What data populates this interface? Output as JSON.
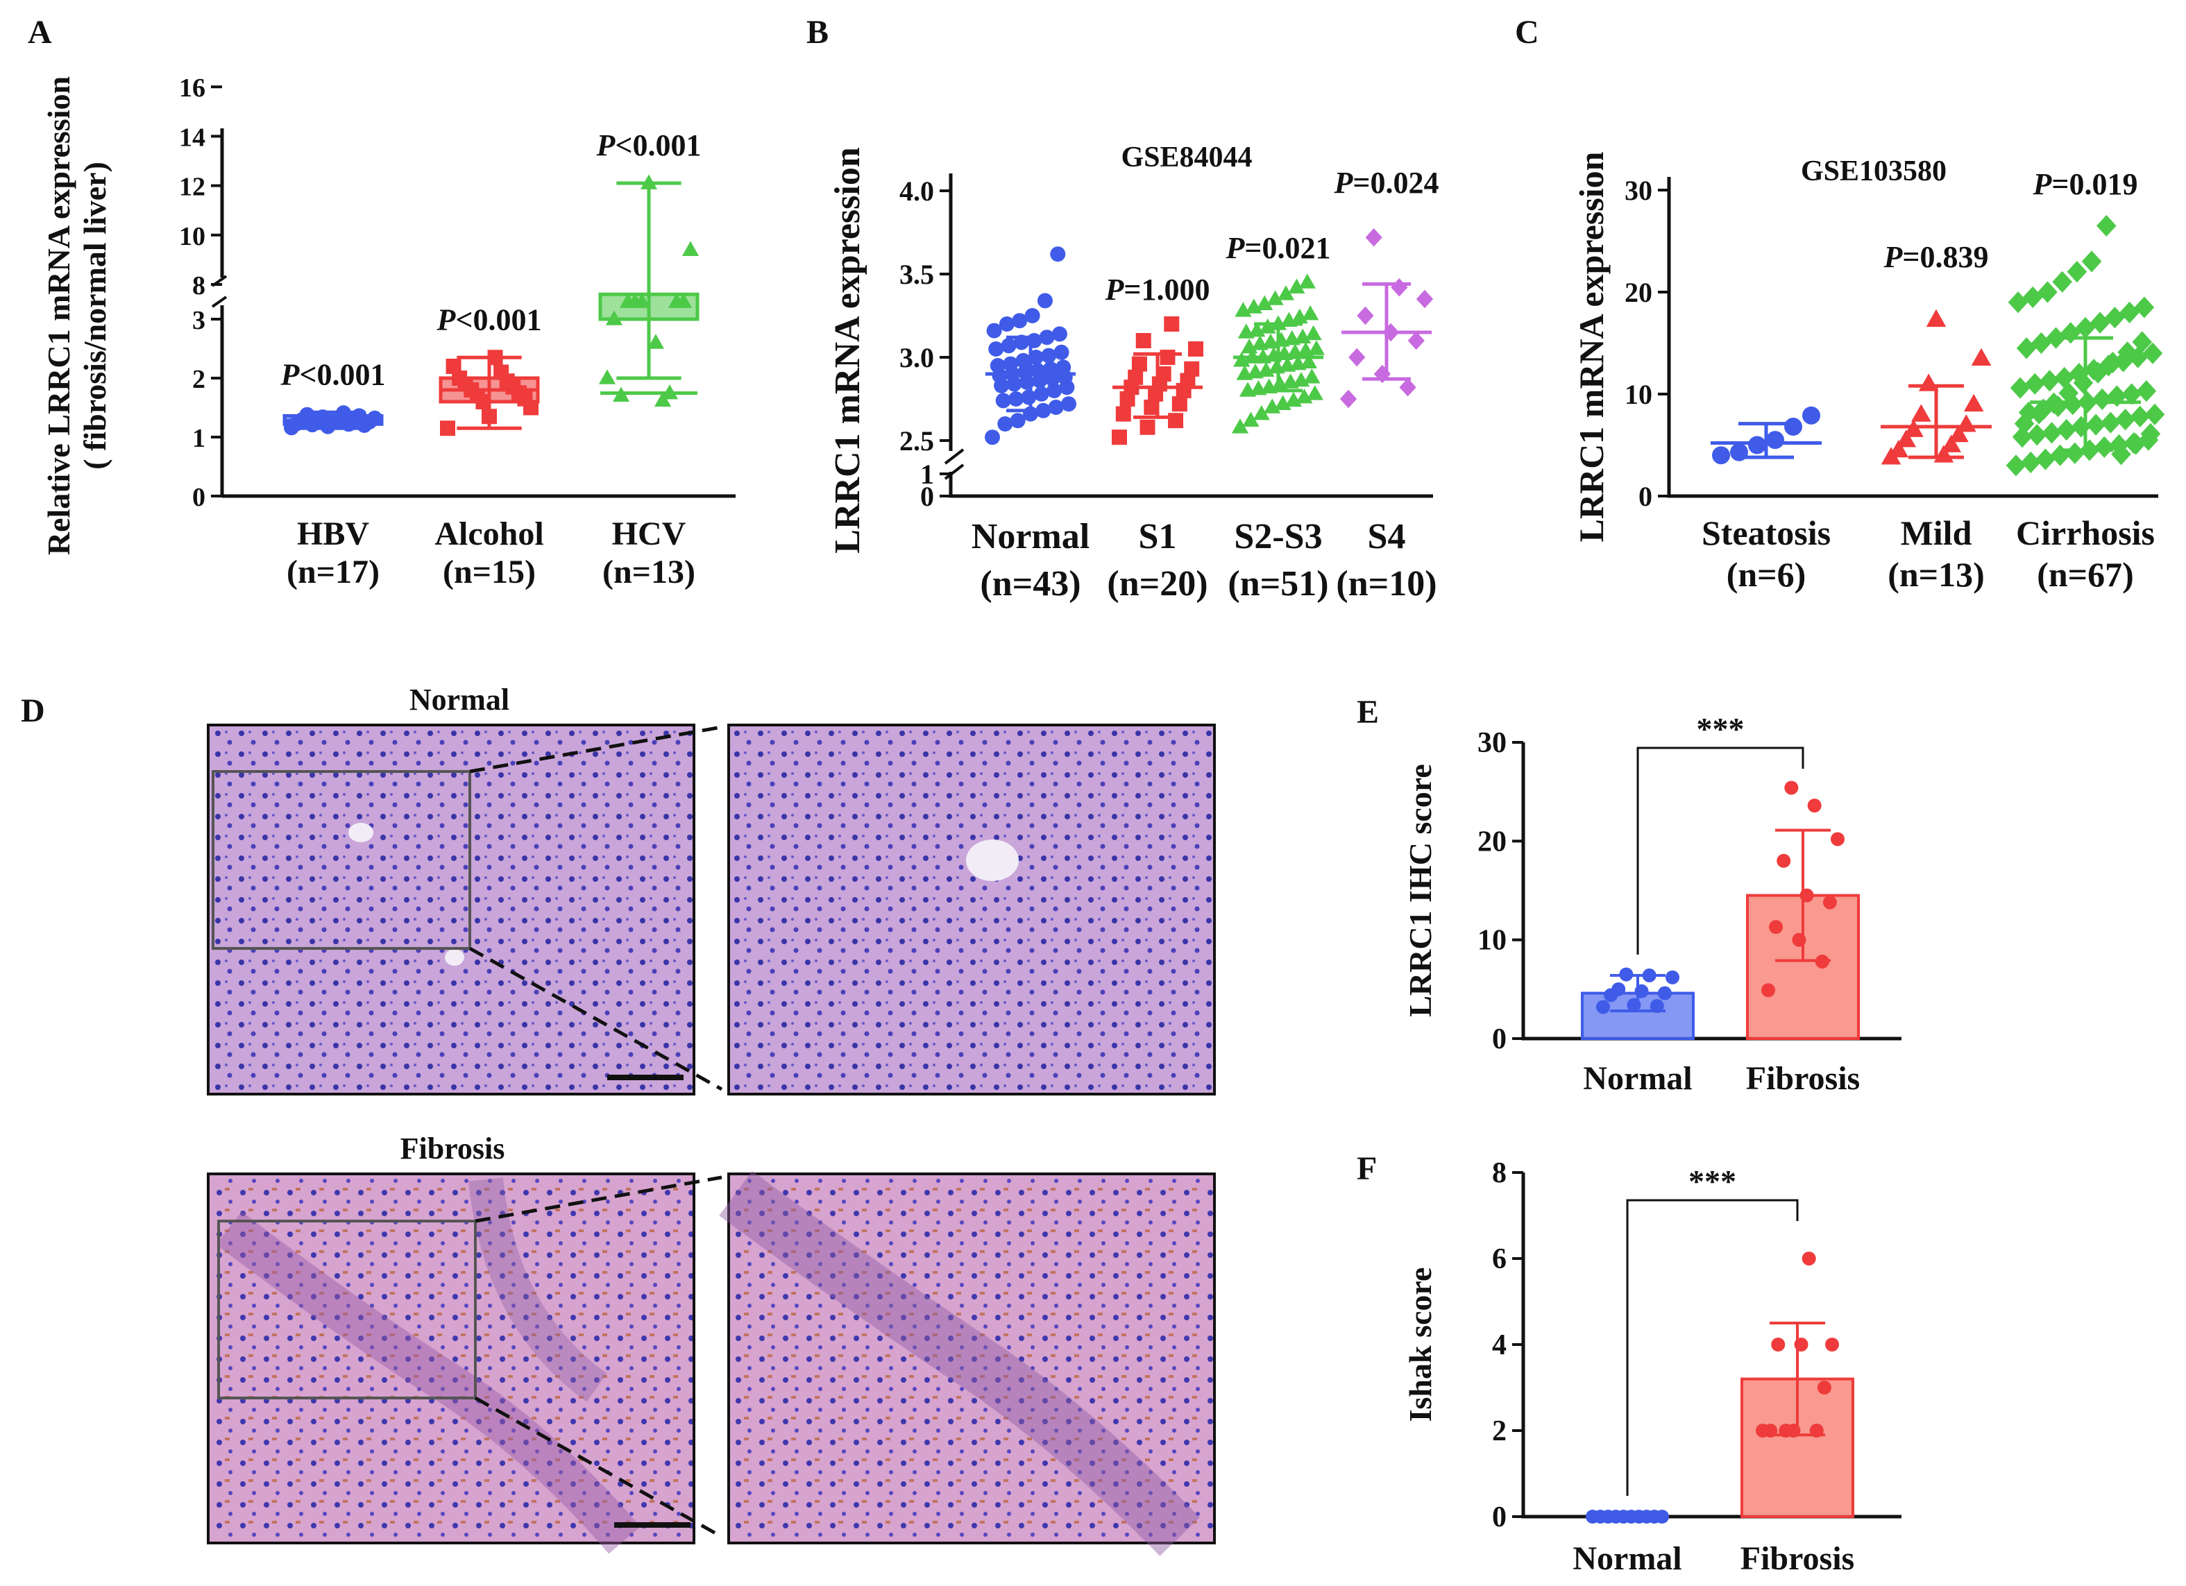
{
  "colors": {
    "blue": "#3f5be8",
    "red": "#ef3b3b",
    "green": "#4dc948",
    "purple": "#c86ae0",
    "e_blue_bar": "#6f86f2",
    "e_red_bar": "#f8877b",
    "axis": "#111111"
  },
  "tissue_images": {
    "icon_normal": "normal-liver-ihc-image",
    "icon_fibrosis": "fibrotic-liver-ihc-image"
  },
  "chart_data": [
    {
      "id": "A",
      "panel_label": "A",
      "type": "box-scatter",
      "title": "",
      "ylabel": "Relative LRRC1 mRNA expression",
      "ylabel2": "( fibrosis/normal liver)",
      "ylim": [
        0,
        16
      ],
      "y_break": [
        3,
        8
      ],
      "yticks": [
        "0",
        "1",
        "2",
        "3",
        "8",
        "10",
        "12",
        "14",
        "16"
      ],
      "categories": [
        {
          "name": "HBV",
          "n": "(n=17)",
          "p_italic": "P",
          "p_rest": "<0.001",
          "color": "blue",
          "marker": "circle",
          "box": {
            "min": 1.15,
            "q1": 1.22,
            "median": 1.28,
            "q3": 1.36,
            "max": 1.42
          },
          "points": [
            1.16,
            1.18,
            1.2,
            1.21,
            1.22,
            1.23,
            1.25,
            1.26,
            1.27,
            1.28,
            1.29,
            1.3,
            1.32,
            1.34,
            1.36,
            1.38,
            1.41
          ]
        },
        {
          "name": "Alcohol",
          "n": "(n=15)",
          "p_italic": "P",
          "p_rest": "<0.001",
          "color": "red",
          "marker": "square",
          "box": {
            "min": 1.15,
            "q1": 1.6,
            "median": 1.8,
            "q3": 2.0,
            "max": 2.35
          },
          "points": [
            1.15,
            1.35,
            1.5,
            1.6,
            1.65,
            1.7,
            1.75,
            1.8,
            1.85,
            1.9,
            1.95,
            2.0,
            2.1,
            2.2,
            2.35
          ]
        },
        {
          "name": "HCV",
          "n": "(n=13)",
          "p_italic": "P",
          "p_rest": "<0.001",
          "color": "green",
          "marker": "triangle",
          "box": {
            "min": 2.0,
            "q1": 3.0,
            "median": 3.6,
            "q3": 7.6,
            "max": 12.1
          },
          "points": [
            2.0,
            2.6,
            3.0,
            3.3,
            3.5,
            3.6,
            7.3,
            7.3,
            7.3,
            7.3,
            7.3,
            9.4,
            12.1
          ]
        }
      ]
    },
    {
      "id": "B",
      "panel_label": "B",
      "type": "scatter",
      "title": "GSE84044",
      "ylabel": "LRRC1 mRNA expression",
      "ylim": [
        0,
        4.0
      ],
      "y_break": [
        1,
        2.5
      ],
      "yticks": [
        "0",
        "1",
        "2.5",
        "3.0",
        "3.5",
        "4.0"
      ],
      "categories": [
        {
          "name": "Normal",
          "n": "(n=43)",
          "p_italic": "",
          "p_rest": "",
          "color": "blue",
          "marker": "circle",
          "mean": 2.9,
          "sd_low": 2.68,
          "sd_high": 3.12,
          "points": [
            2.52,
            2.6,
            2.62,
            2.66,
            2.68,
            2.7,
            2.72,
            2.74,
            2.75,
            2.76,
            2.78,
            2.8,
            2.82,
            2.83,
            2.84,
            2.85,
            2.86,
            2.87,
            2.88,
            2.89,
            2.9,
            2.91,
            2.92,
            2.93,
            2.94,
            2.95,
            2.96,
            2.98,
            3.0,
            3.01,
            3.03,
            3.05,
            3.07,
            3.09,
            3.1,
            3.12,
            3.14,
            3.16,
            3.2,
            3.22,
            3.25,
            3.34,
            3.62
          ]
        },
        {
          "name": "S1",
          "n": "(n=20)",
          "p_italic": "P",
          "p_rest": "=1.000",
          "color": "red",
          "marker": "square",
          "mean": 2.82,
          "sd_low": 2.64,
          "sd_high": 3.02,
          "points": [
            2.52,
            2.58,
            2.62,
            2.66,
            2.7,
            2.72,
            2.75,
            2.78,
            2.8,
            2.82,
            2.84,
            2.86,
            2.88,
            2.9,
            2.93,
            2.96,
            3.0,
            3.05,
            3.1,
            3.2
          ]
        },
        {
          "name": "S2-S3",
          "n": "(n=51)",
          "p_italic": "P",
          "p_rest": "=0.021",
          "color": "green",
          "marker": "triangle",
          "mean": 3.0,
          "sd_low": 2.8,
          "sd_high": 3.2,
          "points": [
            2.58,
            2.62,
            2.66,
            2.7,
            2.72,
            2.74,
            2.76,
            2.78,
            2.8,
            2.81,
            2.82,
            2.84,
            2.85,
            2.86,
            2.88,
            2.9,
            2.91,
            2.92,
            2.94,
            2.95,
            2.96,
            2.97,
            2.98,
            3.0,
            3.0,
            3.01,
            3.02,
            3.03,
            3.04,
            3.05,
            3.06,
            3.08,
            3.09,
            3.1,
            3.11,
            3.12,
            3.14,
            3.15,
            3.16,
            3.18,
            3.2,
            3.22,
            3.24,
            3.26,
            3.28,
            3.3,
            3.32,
            3.35,
            3.38,
            3.42,
            3.45
          ]
        },
        {
          "name": "S4",
          "n": "(n=10)",
          "p_italic": "P",
          "p_rest": "=0.024",
          "color": "purple",
          "marker": "diamond",
          "mean": 3.15,
          "sd_low": 2.87,
          "sd_high": 3.44,
          "points": [
            2.75,
            2.82,
            2.9,
            3.0,
            3.1,
            3.15,
            3.25,
            3.35,
            3.42,
            3.72
          ]
        }
      ]
    },
    {
      "id": "C",
      "panel_label": "C",
      "type": "scatter",
      "title": "GSE103580",
      "ylabel": "LRRC1 mRNA expression",
      "ylim": [
        0,
        30
      ],
      "yticks": [
        "0",
        "10",
        "20",
        "30"
      ],
      "categories": [
        {
          "name": "Steatosis",
          "n": "(n=6)",
          "p_italic": "",
          "p_rest": "",
          "color": "blue",
          "marker": "circle",
          "mean": 5.2,
          "sd_low": 3.8,
          "sd_high": 7.1,
          "points": [
            4.0,
            4.3,
            5.0,
            5.5,
            6.8,
            7.9
          ]
        },
        {
          "name": "Mild",
          "n": "(n=13)",
          "p_italic": "P",
          "p_rest": "=0.839",
          "color": "red",
          "marker": "triangle",
          "mean": 6.8,
          "sd_low": 3.8,
          "sd_high": 10.8,
          "points": [
            3.8,
            4.0,
            4.5,
            5.0,
            5.5,
            6.0,
            6.5,
            7.0,
            8.0,
            9.0,
            11.0,
            13.5,
            17.3
          ]
        },
        {
          "name": "Cirrhosis",
          "n": "(n=67)",
          "p_italic": "P",
          "p_rest": "=0.019",
          "color": "green",
          "marker": "diamond",
          "mean": 9.2,
          "sd_low": 4.5,
          "sd_high": 15.5,
          "points": [
            3.0,
            3.3,
            3.6,
            4.0,
            4.2,
            4.5,
            4.8,
            5.0,
            5.2,
            5.5,
            5.8,
            6.0,
            6.2,
            6.5,
            6.8,
            7.0,
            7.2,
            7.5,
            7.8,
            8.0,
            8.2,
            8.5,
            8.8,
            9.0,
            9.2,
            9.5,
            9.8,
            10.0,
            10.3,
            10.6,
            11.0,
            11.3,
            11.6,
            12.0,
            12.4,
            12.8,
            13.2,
            13.6,
            14.0,
            14.5,
            15.0,
            15.5,
            16.0,
            16.5,
            17.0,
            17.5,
            18.0,
            18.5,
            19.0,
            19.5,
            20.0,
            21.0,
            22.0,
            23.0,
            26.5,
            4.1,
            5.1,
            6.1,
            7.1,
            8.1,
            9.1,
            10.1,
            11.1,
            12.1,
            13.1,
            14.1,
            15.1
          ]
        }
      ]
    },
    {
      "id": "E",
      "panel_label": "E",
      "type": "bar",
      "ylabel": "LRRC1 IHC score",
      "ylim": [
        0,
        30
      ],
      "yticks": [
        "0",
        "10",
        "20",
        "30"
      ],
      "significance": "***",
      "categories": [
        {
          "name": "Normal",
          "value": 4.6,
          "sd": 1.8,
          "bar_color": "e_blue_bar",
          "color": "blue",
          "points": [
            3.2,
            3.3,
            3.4,
            4.4,
            4.6,
            4.8,
            5.0,
            6.2,
            6.4,
            6.5
          ]
        },
        {
          "name": "Fibrosis",
          "value": 14.5,
          "sd": 6.6,
          "bar_color": "e_red_bar",
          "color": "red",
          "points": [
            4.9,
            7.8,
            10.0,
            11.3,
            13.8,
            14.5,
            18.0,
            20.2,
            23.6,
            25.4
          ]
        }
      ]
    },
    {
      "id": "F",
      "panel_label": "F",
      "type": "bar",
      "ylabel": "Ishak score",
      "ylim": [
        0,
        8
      ],
      "yticks": [
        "0",
        "2",
        "4",
        "6",
        "8"
      ],
      "significance": "***",
      "categories": [
        {
          "name": "Normal",
          "value": 0,
          "sd": 0,
          "bar_color": "e_blue_bar",
          "color": "blue",
          "points": [
            0,
            0,
            0,
            0,
            0,
            0,
            0,
            0,
            0,
            0
          ]
        },
        {
          "name": "Fibrosis",
          "value": 3.2,
          "sd": 1.3,
          "bar_color": "e_red_bar",
          "color": "red",
          "points": [
            2,
            2,
            2,
            2,
            3,
            4,
            4,
            4,
            6,
            2
          ]
        }
      ]
    }
  ],
  "panel_d": {
    "panel_label": "D",
    "normal_title": "Normal",
    "fibrosis_title": "Fibrosis"
  }
}
